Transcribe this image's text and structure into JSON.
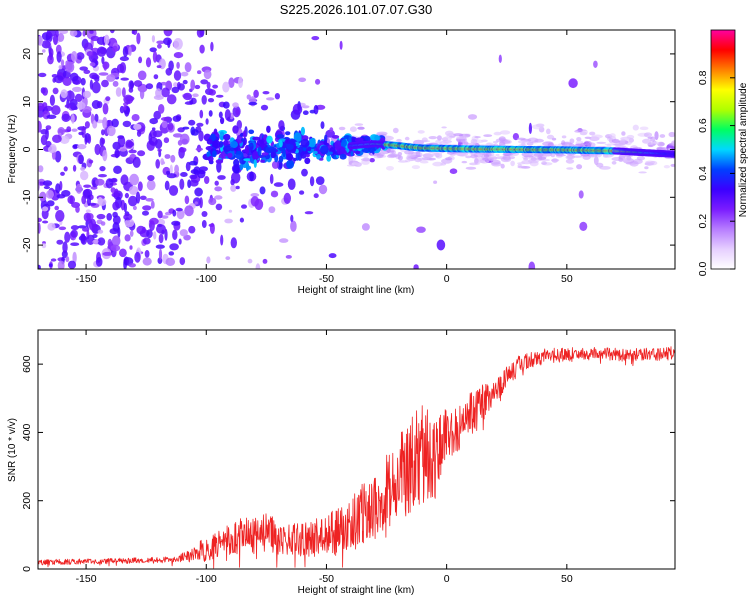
{
  "title": "S225.2026.101.07.07.G30",
  "chart_data": [
    {
      "id": "spectrogram",
      "type": "heatmap",
      "xlabel": "Height of straight line (km)",
      "ylabel": "Frequency (Hz)",
      "xlim": [
        -170,
        95
      ],
      "ylim": [
        -25,
        25
      ],
      "x_ticks": [
        -150,
        -100,
        -50,
        0,
        50
      ],
      "y_ticks": [
        -20,
        -10,
        0,
        10,
        20
      ],
      "colorbar": {
        "label": "Normalized spectral amplitude",
        "range": [
          0,
          1
        ],
        "ticks": [
          0.0,
          0.2,
          0.4,
          0.6,
          0.8
        ],
        "tick_labels": [
          "0.0",
          "0.2",
          "0.4",
          "0.6",
          "0.8"
        ],
        "colors": [
          "#ffffff",
          "#e6cfff",
          "#b77dff",
          "#7a1cff",
          "#3a00ff",
          "#0040ff",
          "#00d8ff",
          "#00ff60",
          "#b0ff00",
          "#ffff00",
          "#ff8000",
          "#ff0000",
          "#ff00a0"
        ]
      },
      "ridge": {
        "x": [
          -45,
          -35,
          -30,
          -20,
          -15,
          -10,
          0,
          10,
          30,
          50,
          70,
          80,
          95
        ],
        "y": [
          0.5,
          1.0,
          1.2,
          0.8,
          0.5,
          0.3,
          0.2,
          0.1,
          0.0,
          -0.1,
          -0.3,
          -0.6,
          -1.0
        ]
      }
    },
    {
      "id": "snr",
      "type": "line",
      "xlabel": "Height of straight line (km)",
      "ylabel": "SNR (10 * v/v)",
      "xlim": [
        -170,
        95
      ],
      "ylim": [
        0,
        700
      ],
      "x_ticks": [
        -150,
        -100,
        -50,
        0,
        50
      ],
      "y_ticks": [
        0,
        200,
        400,
        600
      ],
      "series": [
        {
          "name": "SNR",
          "color": "#ee2222",
          "x": [
            -170,
            -150,
            -130,
            -115,
            -105,
            -95,
            -85,
            -75,
            -65,
            -55,
            -45,
            -35,
            -25,
            -15,
            -10,
            -5,
            0,
            10,
            20,
            30,
            40,
            60,
            80,
            95
          ],
          "y": [
            20,
            22,
            25,
            28,
            45,
            75,
            95,
            105,
            85,
            90,
            110,
            160,
            230,
            300,
            340,
            330,
            380,
            450,
            520,
            600,
            625,
            630,
            628,
            632
          ],
          "noise": [
            8,
            8,
            8,
            8,
            25,
            45,
            55,
            60,
            45,
            55,
            70,
            90,
            110,
            140,
            150,
            120,
            90,
            70,
            40,
            25,
            22,
            20,
            20,
            20
          ]
        }
      ]
    }
  ]
}
